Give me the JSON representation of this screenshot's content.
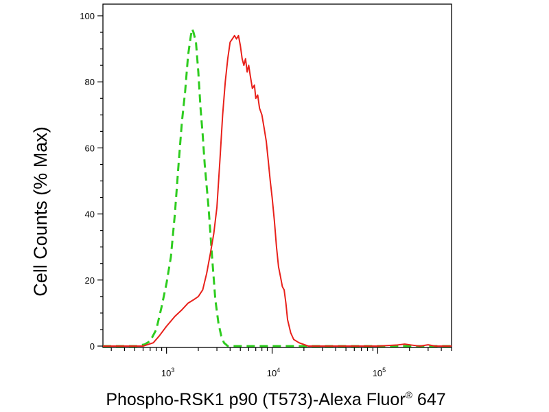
{
  "chart_data": {
    "type": "line",
    "title": "",
    "xlabel": "Phospho-RSK1 p90 (T573)-Alexa Fluor",
    "xlabel_superscript": "®",
    "xlabel_suffix": " 647",
    "ylabel": "Cell Counts (% Max)",
    "x_scale": "log",
    "xlim": [
      250,
      500000
    ],
    "ylim": [
      0,
      100
    ],
    "y_ticks": [
      0,
      20,
      40,
      60,
      80,
      100
    ],
    "x_ticks": [
      {
        "value": 1000,
        "base": "10",
        "exp": "3"
      },
      {
        "value": 10000,
        "base": "10",
        "exp": "4"
      },
      {
        "value": 100000,
        "base": "10",
        "exp": "5"
      }
    ],
    "grid": false,
    "legend": "none",
    "series": [
      {
        "color": "#2ecc1f",
        "style": "dashed",
        "points": [
          [
            250,
            0
          ],
          [
            520,
            0
          ],
          [
            620,
            0.5
          ],
          [
            700,
            1.5
          ],
          [
            800,
            5
          ],
          [
            900,
            12
          ],
          [
            1000,
            19
          ],
          [
            1100,
            27
          ],
          [
            1200,
            40
          ],
          [
            1300,
            55
          ],
          [
            1400,
            68
          ],
          [
            1500,
            77
          ],
          [
            1600,
            88
          ],
          [
            1700,
            94
          ],
          [
            1750,
            96
          ],
          [
            1800,
            95
          ],
          [
            1900,
            92
          ],
          [
            2000,
            83
          ],
          [
            2100,
            72
          ],
          [
            2200,
            64
          ],
          [
            2300,
            55
          ],
          [
            2500,
            42
          ],
          [
            2700,
            27
          ],
          [
            2900,
            14
          ],
          [
            3100,
            7
          ],
          [
            3300,
            3
          ],
          [
            3500,
            1
          ],
          [
            3800,
            0
          ],
          [
            10000,
            0
          ],
          [
            100000,
            0
          ],
          [
            500000,
            0
          ]
        ]
      },
      {
        "color": "#e8211b",
        "style": "solid",
        "points": [
          [
            250,
            0
          ],
          [
            600,
            0
          ],
          [
            750,
            1
          ],
          [
            850,
            3
          ],
          [
            1000,
            6
          ],
          [
            1200,
            9
          ],
          [
            1400,
            11
          ],
          [
            1600,
            13
          ],
          [
            1800,
            14
          ],
          [
            2000,
            15
          ],
          [
            2200,
            17
          ],
          [
            2400,
            22
          ],
          [
            2600,
            28
          ],
          [
            2800,
            34
          ],
          [
            3000,
            42
          ],
          [
            3200,
            56
          ],
          [
            3400,
            70
          ],
          [
            3600,
            80
          ],
          [
            3800,
            87
          ],
          [
            4000,
            92
          ],
          [
            4200,
            93
          ],
          [
            4400,
            94
          ],
          [
            4600,
            93
          ],
          [
            4800,
            94
          ],
          [
            5000,
            91
          ],
          [
            5200,
            87
          ],
          [
            5400,
            85
          ],
          [
            5600,
            87
          ],
          [
            5800,
            83
          ],
          [
            6000,
            85
          ],
          [
            6200,
            82
          ],
          [
            6500,
            78
          ],
          [
            6800,
            79
          ],
          [
            7000,
            75
          ],
          [
            7300,
            76
          ],
          [
            7600,
            72
          ],
          [
            8000,
            70
          ],
          [
            8400,
            66
          ],
          [
            8800,
            62
          ],
          [
            9200,
            56
          ],
          [
            9600,
            50
          ],
          [
            10000,
            45
          ],
          [
            10500,
            38
          ],
          [
            11000,
            30
          ],
          [
            11500,
            24
          ],
          [
            12000,
            21
          ],
          [
            12500,
            18
          ],
          [
            13000,
            17
          ],
          [
            13500,
            13
          ],
          [
            14000,
            8
          ],
          [
            15000,
            4
          ],
          [
            16000,
            2
          ],
          [
            18000,
            1
          ],
          [
            22000,
            0
          ],
          [
            40000,
            0
          ],
          [
            100000,
            0
          ],
          [
            150000,
            0.3
          ],
          [
            180000,
            0.6
          ],
          [
            210000,
            0.3
          ],
          [
            250000,
            0
          ],
          [
            300000,
            0.4
          ],
          [
            350000,
            0
          ],
          [
            500000,
            0
          ]
        ]
      }
    ]
  }
}
